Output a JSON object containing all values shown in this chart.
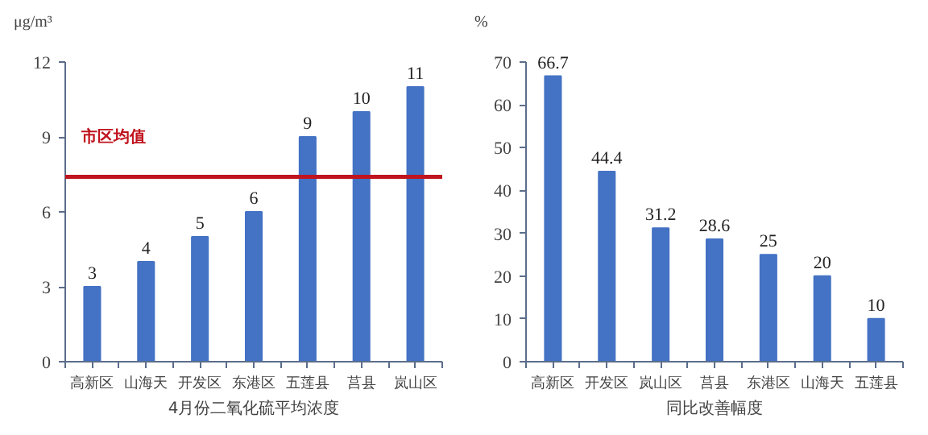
{
  "chart_data": [
    {
      "type": "bar",
      "ylabel": "μg/m³",
      "xlabel": "4月份二氧化硫平均浓度",
      "categories": [
        "高新区",
        "山海天",
        "开发区",
        "东港区",
        "五莲县",
        "莒县",
        "岚山区"
      ],
      "values": [
        3,
        4,
        5,
        6,
        9,
        10,
        11
      ],
      "color": "#4472c4",
      "data_labels": true,
      "ylim": [
        0,
        12
      ],
      "yticks": [
        0,
        3,
        6,
        9,
        12
      ],
      "grid": false,
      "ref_lines": [
        {
          "axis": "y",
          "value": 7.4,
          "label": "市区均值",
          "color": "#c0141e"
        }
      ]
    },
    {
      "type": "bar",
      "ylabel": "%",
      "xlabel": "同比改善幅度",
      "categories": [
        "高新区",
        "开发区",
        "岚山区",
        "莒县",
        "东港区",
        "山海天",
        "五莲县"
      ],
      "values": [
        66.7,
        44.4,
        31.2,
        28.6,
        25,
        20,
        10
      ],
      "color": "#4472c4",
      "data_labels": true,
      "ylim": [
        0,
        70
      ],
      "yticks": [
        0,
        10,
        20,
        30,
        40,
        50,
        60,
        70
      ],
      "grid": false
    }
  ]
}
